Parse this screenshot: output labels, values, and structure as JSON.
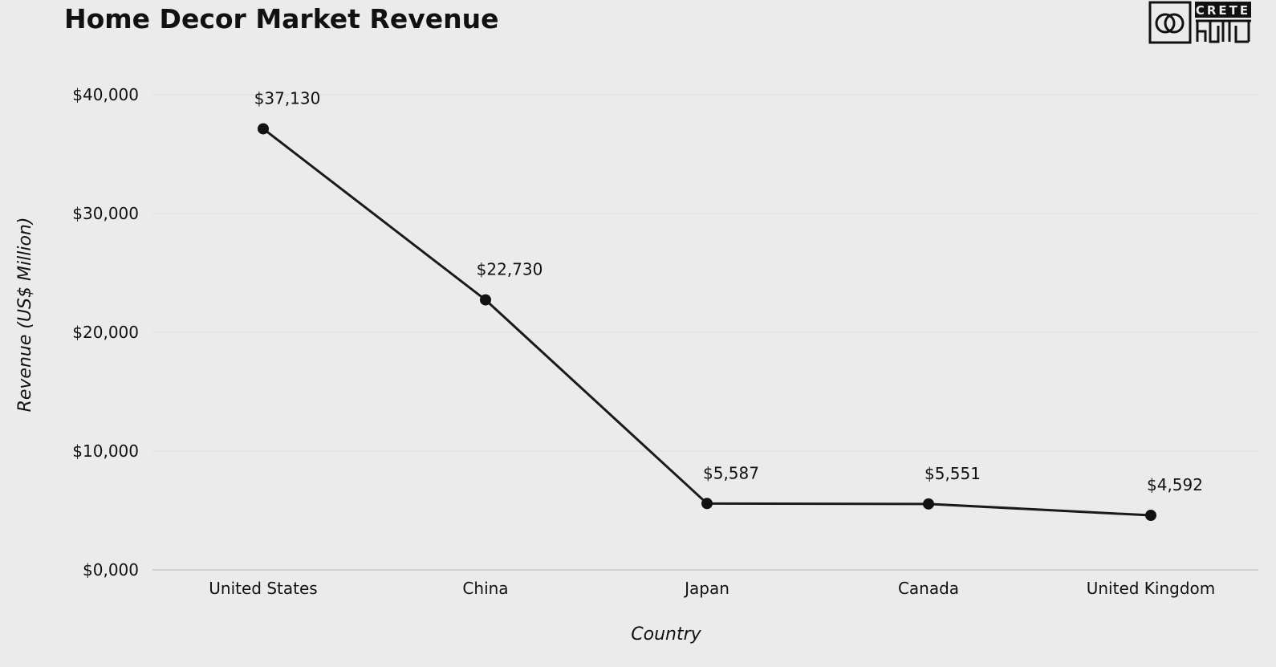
{
  "chart_data": {
    "type": "line",
    "title": "Home Decor Market Revenue",
    "xlabel": "Country",
    "ylabel": "Revenue (US$ Million)",
    "categories": [
      "United States",
      "China",
      "Japan",
      "Canada",
      "United Kingdom"
    ],
    "values": [
      37130,
      22730,
      5587,
      5551,
      4592
    ],
    "data_labels": [
      "$37,130",
      "$22,730",
      "$5,587",
      "$5,551",
      "$4,592"
    ],
    "ylim": [
      0,
      40000
    ],
    "yticks": [
      0,
      10000,
      20000,
      30000,
      40000
    ],
    "ytick_labels": [
      "$0,000",
      "$10,000",
      "$20,000",
      "$30,000",
      "$40,000"
    ],
    "grid": true,
    "line_color": "#1a1a1a"
  },
  "logo": {
    "text_top": "CRETE",
    "text_bottom": "Kala"
  }
}
